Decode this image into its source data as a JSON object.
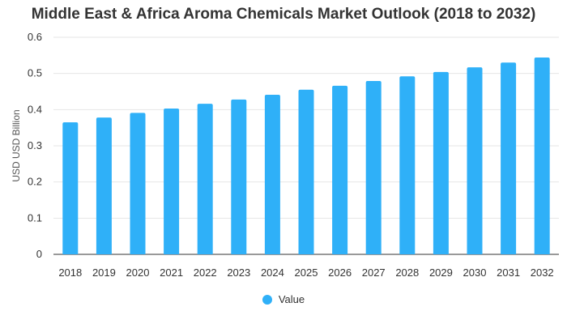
{
  "chart_data": {
    "type": "bar",
    "title": "Middle East & Africa Aroma Chemicals Market Outlook (2018 to 2032)",
    "xlabel": "",
    "ylabel": "USD USD Billion",
    "categories": [
      "2018",
      "2019",
      "2020",
      "2021",
      "2022",
      "2023",
      "2024",
      "2025",
      "2026",
      "2027",
      "2028",
      "2029",
      "2030",
      "2031",
      "2032"
    ],
    "series": [
      {
        "name": "Value",
        "values": [
          0.365,
          0.378,
          0.391,
          0.403,
          0.416,
          0.428,
          0.441,
          0.455,
          0.466,
          0.479,
          0.492,
          0.504,
          0.517,
          0.53,
          0.544
        ]
      }
    ],
    "ylim": [
      0,
      0.6
    ],
    "yticks": [
      "0",
      "0.1",
      "0.2",
      "0.3",
      "0.4",
      "0.5",
      "0.6"
    ],
    "grid": true,
    "legend_position": "bottom",
    "colors": {
      "bar": "#2fb0f8",
      "grid": "#e6e6e6",
      "axis": "#333333"
    }
  }
}
